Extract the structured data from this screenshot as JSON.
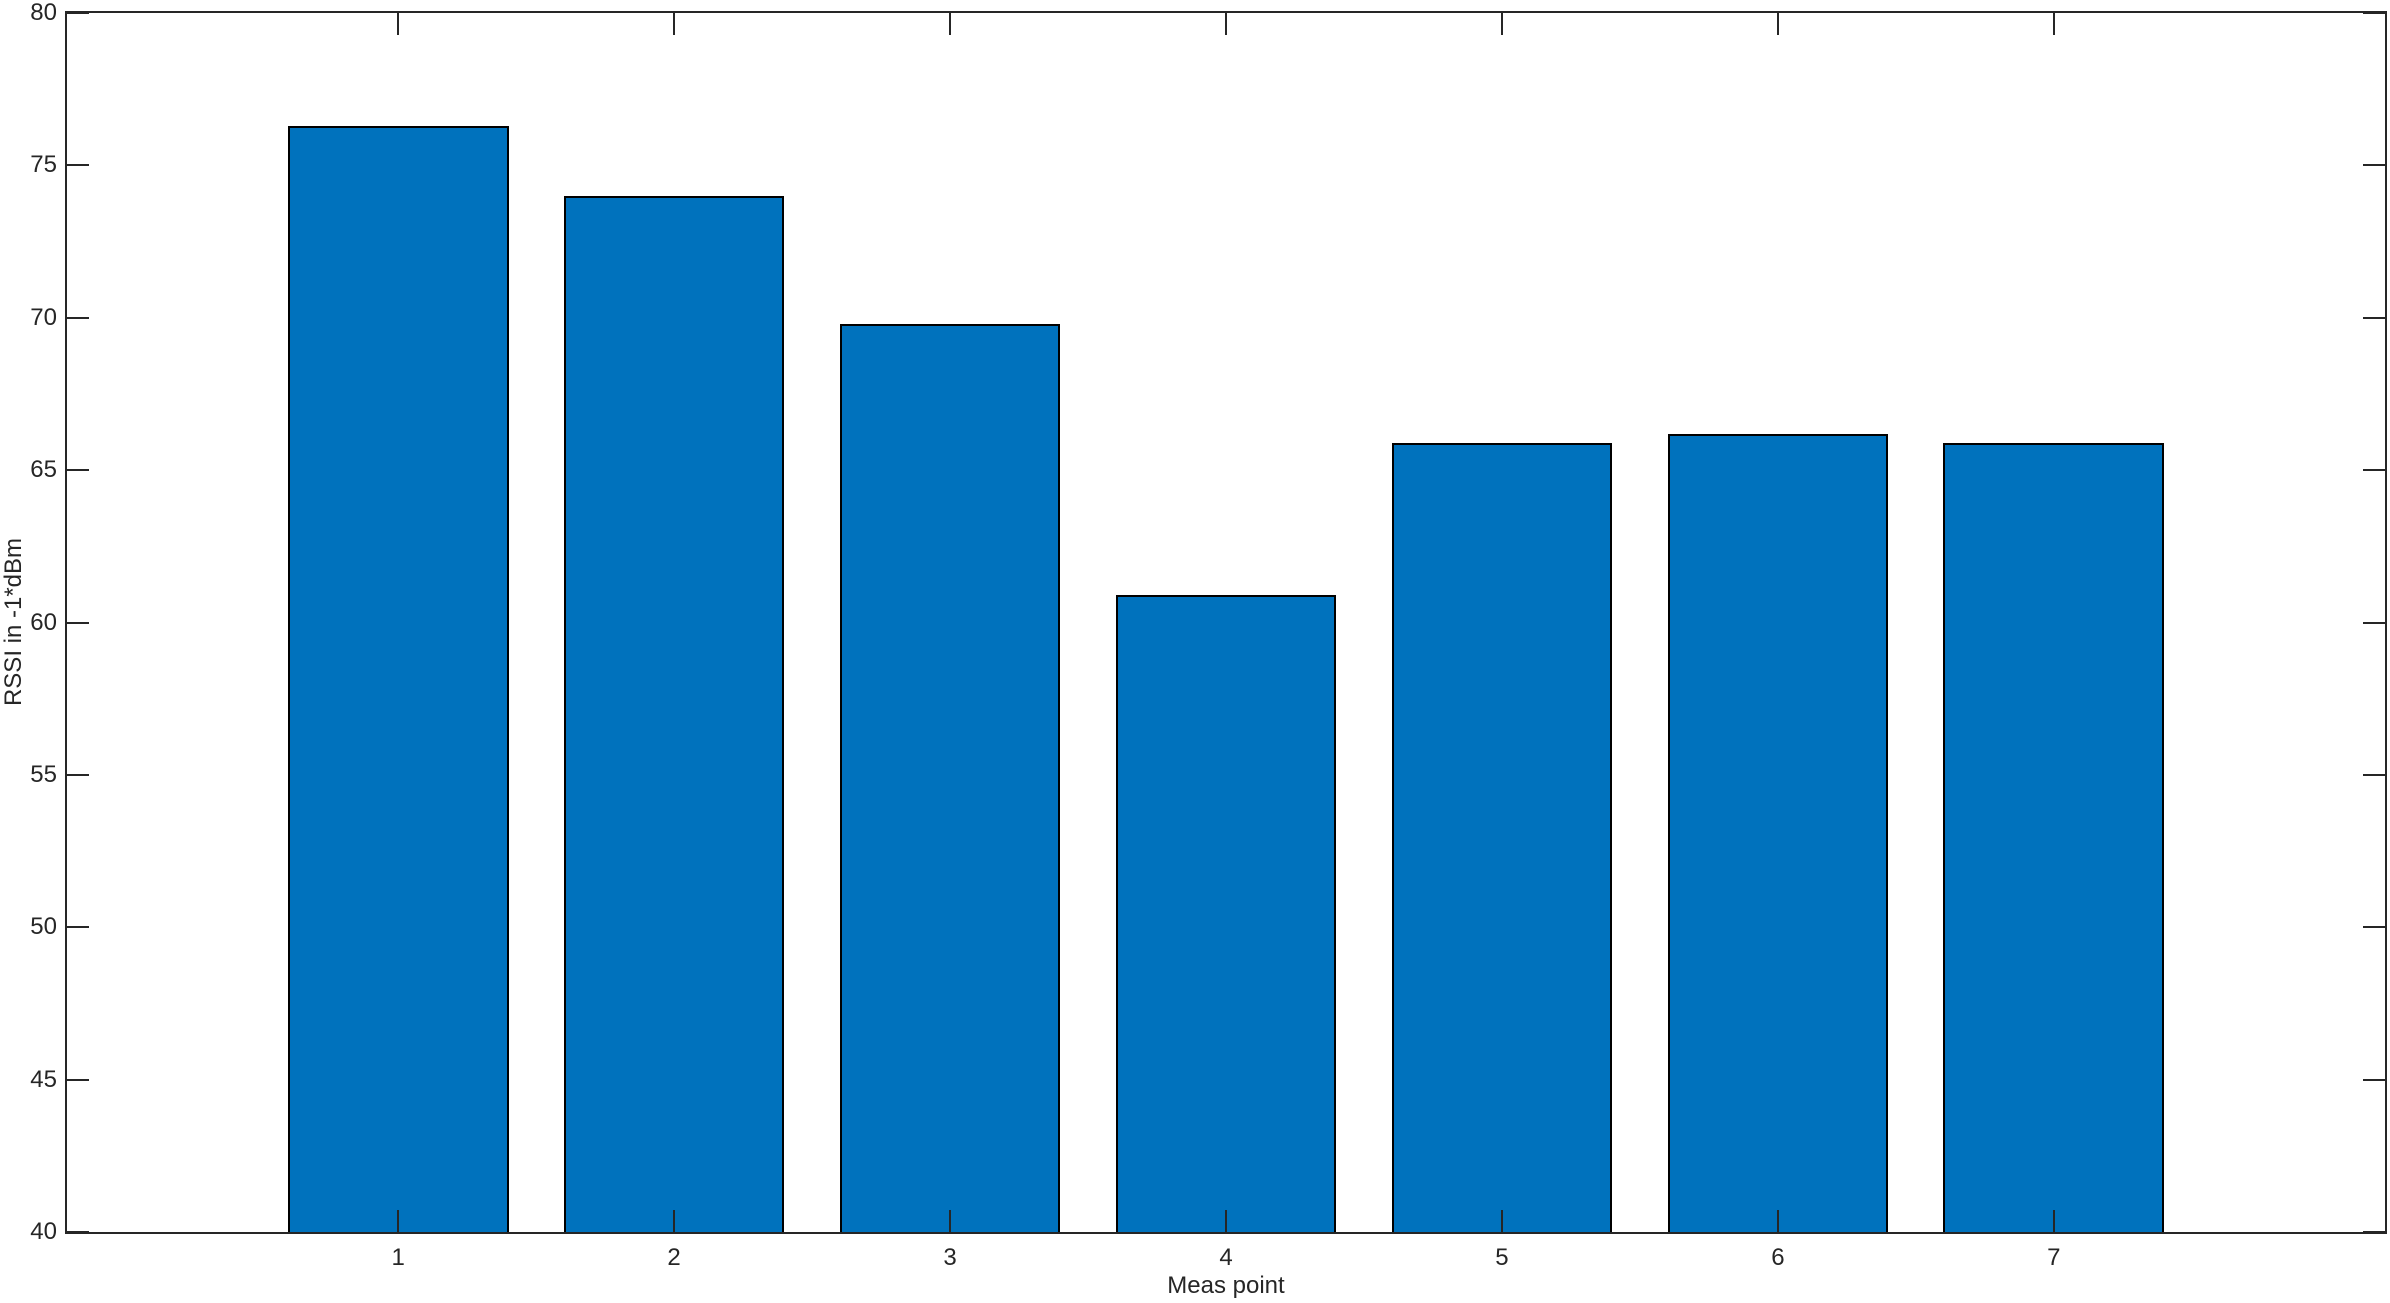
{
  "chart_data": {
    "type": "bar",
    "categories": [
      "1",
      "2",
      "3",
      "4",
      "5",
      "6",
      "7"
    ],
    "values": [
      76.3,
      74.0,
      69.8,
      60.9,
      65.9,
      66.2,
      65.9
    ],
    "series_name": "RSSI",
    "title": "",
    "xlabel": "Meas point",
    "ylabel": "RSSI in -1*dBm",
    "xlim": [
      -0.2,
      8.2
    ],
    "ylim": [
      40,
      80
    ],
    "yticks": [
      "40",
      "45",
      "50",
      "55",
      "60",
      "65",
      "70",
      "75",
      "80"
    ],
    "xticks": [
      "1",
      "2",
      "3",
      "4",
      "5",
      "6",
      "7"
    ],
    "bar_width_ratio": 0.8,
    "grid": false,
    "legend": "none",
    "colors": {
      "bar_fill": "#0072BD",
      "bar_edge": "#000000",
      "axis": "#262626",
      "text": "#262626",
      "background": "#FFFFFF"
    }
  }
}
